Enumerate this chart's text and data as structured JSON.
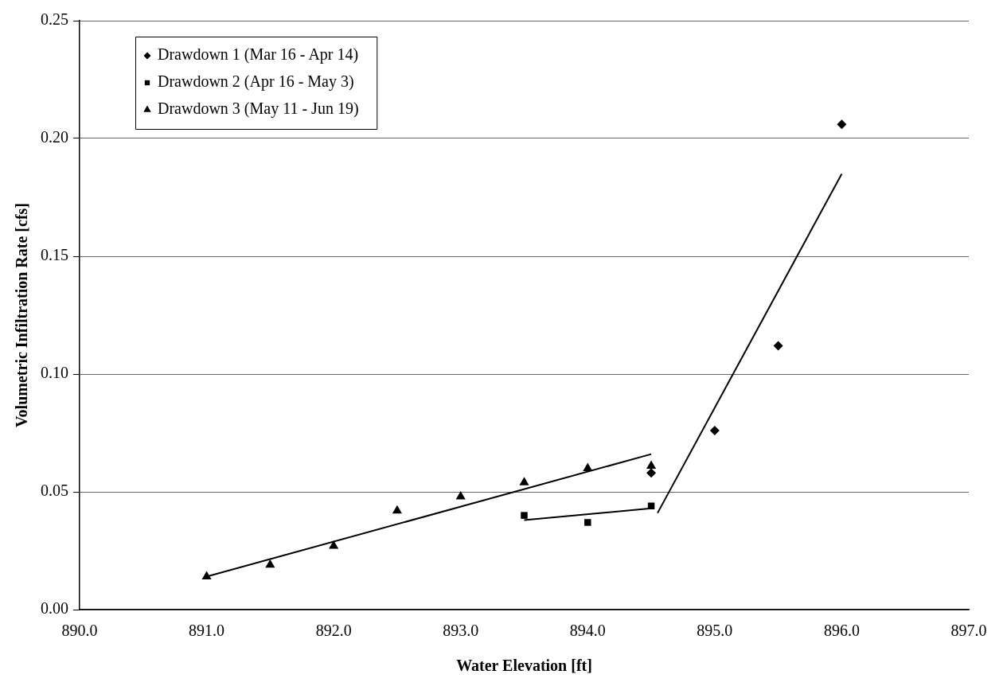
{
  "chart_data": {
    "type": "scatter",
    "xlabel": "Water Elevation [ft]",
    "ylabel": "Volumetric Infiltration Rate [cfs]",
    "xlim": [
      890,
      897
    ],
    "xticks": [
      {
        "value": 890,
        "label": "890.0"
      },
      {
        "value": 891,
        "label": "891.0"
      },
      {
        "value": 892,
        "label": "892.0"
      },
      {
        "value": 893,
        "label": "893.0"
      },
      {
        "value": 894,
        "label": "894.0"
      },
      {
        "value": 895,
        "label": "895.0"
      },
      {
        "value": 896,
        "label": "896.0"
      },
      {
        "value": 897,
        "label": "897.0"
      }
    ],
    "ylim": [
      0,
      0.25
    ],
    "yticks": [
      {
        "value": 0,
        "label": "0.00"
      },
      {
        "value": 0.05,
        "label": "0.05"
      },
      {
        "value": 0.1,
        "label": "0.10"
      },
      {
        "value": 0.15,
        "label": "0.15"
      },
      {
        "value": 0.2,
        "label": "0.20"
      },
      {
        "value": 0.25,
        "label": "0.25"
      }
    ],
    "grid": "y",
    "legend": "top left",
    "series": [
      {
        "name": "Drawdown 1 (Mar 16 - Apr 14)",
        "marker": "diamond",
        "color": "#000000",
        "x": [
          894.5,
          895,
          895.5,
          896
        ],
        "values": [
          0.058,
          0.076,
          0.112,
          0.206
        ]
      },
      {
        "name": "Drawdown 2 (Apr 16 - May 3)",
        "marker": "square",
        "color": "#000000",
        "x": [
          893.5,
          894,
          894.5
        ],
        "values": [
          0.04,
          0.037,
          0.044
        ]
      },
      {
        "name": "Drawdown 3 (May 11 - Jun 19)",
        "marker": "triangle",
        "color": "#000000",
        "x": [
          891,
          891.5,
          892,
          892.5,
          893,
          893.5,
          894,
          894.5
        ],
        "values": [
          0.014,
          0.019,
          0.027,
          0.042,
          0.048,
          0.054,
          0.06,
          0.061
        ]
      },
      {
        "type": "line",
        "marker": "none",
        "color": "#000000",
        "x": [
          894.55,
          896
        ],
        "values": [
          0.041,
          0.185
        ]
      },
      {
        "type": "line",
        "marker": "none",
        "color": "#000000",
        "x": [
          893.5,
          894.5
        ],
        "values": [
          0.038,
          0.043
        ]
      },
      {
        "type": "line",
        "marker": "none",
        "color": "#000000",
        "x": [
          891,
          894.5
        ],
        "values": [
          0.014,
          0.066
        ]
      }
    ]
  }
}
